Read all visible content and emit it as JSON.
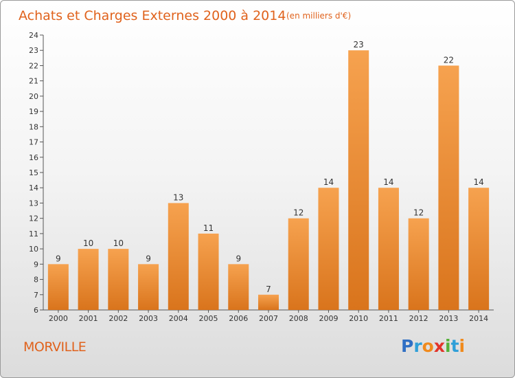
{
  "chart_data": {
    "type": "bar",
    "title": "Achats et Charges Externes 2000 à 2014",
    "subtitle": "(en milliers d'€)",
    "categories": [
      "2000",
      "2001",
      "2002",
      "2003",
      "2004",
      "2005",
      "2006",
      "2007",
      "2008",
      "2009",
      "2010",
      "2011",
      "2012",
      "2013",
      "2014"
    ],
    "values": [
      9,
      10,
      10,
      9,
      13,
      11,
      9,
      7,
      12,
      14,
      23,
      14,
      12,
      22,
      14
    ],
    "ylim": [
      6,
      24
    ],
    "yticks": [
      6,
      7,
      8,
      9,
      10,
      11,
      12,
      13,
      14,
      15,
      16,
      17,
      18,
      19,
      20,
      21,
      22,
      23,
      24
    ],
    "grid": false,
    "bar_color_light": "#f6a24f",
    "bar_color_dark": "#d9741c"
  },
  "location_label": "MORVILLE",
  "logo": {
    "text": "Proxiti",
    "letters": [
      {
        "ch": "P",
        "color": "#2f6fc4"
      },
      {
        "ch": "r",
        "color": "#2f9fd8"
      },
      {
        "ch": "o",
        "color": "#f08a1c"
      },
      {
        "ch": "x",
        "color": "#e2342a"
      },
      {
        "ch": "i",
        "color": "#55b13a"
      },
      {
        "ch": "t",
        "color": "#2f9fd8"
      },
      {
        "ch": "i",
        "color": "#f08a1c"
      }
    ]
  }
}
